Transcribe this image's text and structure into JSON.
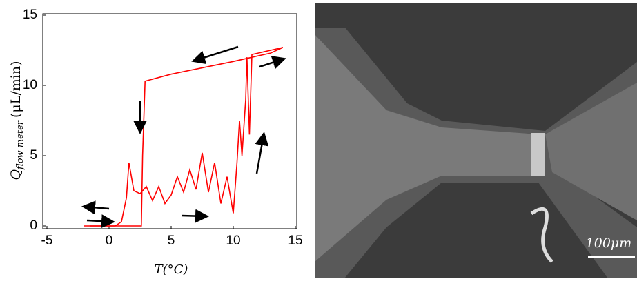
{
  "chart_data": {
    "type": "line",
    "x_label": "T(°C)",
    "y_label": "Q",
    "y_label_subscript": "flow meter",
    "y_label_unit": "(μL/min)",
    "xlim": [
      -5,
      15
    ],
    "ylim": [
      0,
      15
    ],
    "xticks": [
      -5,
      0,
      5,
      10,
      15
    ],
    "yticks": [
      0,
      5,
      10,
      15
    ],
    "series": [
      {
        "color": "#ff0000",
        "x": [
          -1.5,
          0.5,
          1,
          1.4,
          1.6,
          1.8,
          2,
          2.5,
          3,
          3.5,
          4,
          4.5,
          5,
          5.5,
          6,
          6.5,
          7,
          7.5,
          8,
          8.5,
          9,
          9.5,
          10,
          10.3,
          10.5,
          10.7,
          11,
          11.1,
          11.3,
          11.5,
          12,
          13,
          14
        ],
        "values": [
          0,
          0,
          0.3,
          2,
          4.5,
          3.5,
          2.5,
          2.3,
          2.8,
          1.8,
          2.8,
          1.6,
          2.2,
          3.5,
          2.4,
          4,
          2.6,
          5.2,
          2.4,
          4.5,
          1.6,
          3.5,
          0.9,
          4.5,
          7.5,
          5,
          9,
          12,
          6.5,
          12.2,
          12.3,
          12.5,
          12.7
        ]
      },
      {
        "color": "#ff0000",
        "x": [
          14,
          13,
          10,
          5,
          2.9,
          2.7,
          2.6,
          0,
          -2
        ],
        "values": [
          12.7,
          12.3,
          11.7,
          10.8,
          10.3,
          5,
          0,
          0,
          0
        ]
      }
    ]
  },
  "image": {
    "scale_bar_label": "100μm"
  }
}
